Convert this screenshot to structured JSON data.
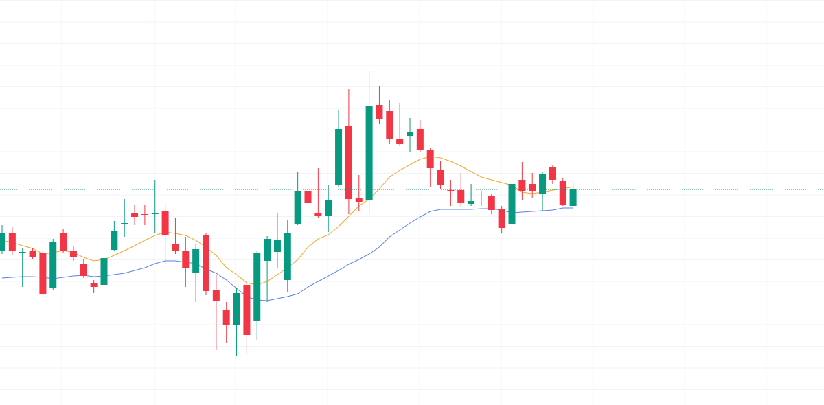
{
  "chart_data": {
    "type": "candlestick",
    "ylim": [
      0,
      590
    ],
    "up_color": "#089981",
    "down_color": "#f23645",
    "open": [
      225,
      250,
      221,
      224,
      222,
      170,
      250,
      225,
      205,
      178,
      175,
      226,
      263,
      280,
      278,
      278,
      282,
      235,
      225,
      192,
      248,
      168,
      138,
      116,
      175,
      122,
      210,
      223,
      182,
      264,
      312,
      279,
      276,
      320,
      407,
      302,
      298,
      437,
      428,
      388,
      392,
      402,
      372,
      343,
      313,
      313,
      293,
      304,
      305,
      285,
      264,
      328,
      322,
      308,
      347,
      327,
      290
    ],
    "high": [
      262,
      260,
      228,
      228,
      225,
      242,
      257,
      232,
      212,
      182,
      215,
      268,
      300,
      292,
      292,
      328,
      295,
      272,
      245,
      235,
      250,
      190,
      150,
      170,
      178,
      225,
      246,
      280,
      270,
      340,
      358,
      345,
      320,
      430,
      460,
      335,
      487,
      465,
      445,
      440,
      418,
      415,
      375,
      355,
      328,
      338,
      322,
      312,
      308,
      290,
      325,
      354,
      338,
      340,
      350,
      330,
      325
    ],
    "low": [
      220,
      218,
      172,
      212,
      160,
      168,
      222,
      210,
      185,
      163,
      174,
      224,
      245,
      262,
      262,
      250,
      205,
      220,
      172,
      150,
      160,
      80,
      90,
      72,
      75,
      95,
      150,
      200,
      165,
      262,
      270,
      272,
      252,
      318,
      278,
      282,
      278,
      410,
      380,
      377,
      368,
      368,
      318,
      314,
      290,
      288,
      290,
      290,
      278,
      250,
      253,
      298,
      302,
      283,
      322,
      290,
      288
    ],
    "close": [
      250,
      225,
      223,
      216,
      162,
      238,
      225,
      215,
      188,
      172,
      214,
      254,
      265,
      274,
      277,
      279,
      248,
      225,
      200,
      227,
      166,
      152,
      116,
      163,
      102,
      222,
      242,
      240,
      250,
      312,
      294,
      275,
      298,
      402,
      300,
      296,
      435,
      417,
      388,
      380,
      398,
      372,
      345,
      320,
      312,
      295,
      297,
      305,
      284,
      258,
      322,
      312,
      312,
      336,
      328,
      292,
      314
    ],
    "moving_averages": [
      {
        "color": "#f5a623",
        "values": [
          240,
          237,
          232,
          228,
          220,
          222,
          225,
          222,
          215,
          210,
          212,
          218,
          225,
          232,
          240,
          247,
          252,
          250,
          247,
          240,
          230,
          218,
          200,
          190,
          178,
          175,
          180,
          190,
          200,
          212,
          230,
          242,
          248,
          260,
          275,
          290,
          300,
          315,
          332,
          342,
          350,
          358,
          362,
          360,
          355,
          348,
          340,
          332,
          328,
          324,
          320,
          310,
          308,
          310,
          313,
          315,
          318
        ]
      },
      {
        "color": "#5b7ff0",
        "values": [
          185,
          186,
          187,
          187,
          186,
          184,
          186,
          188,
          189,
          187,
          188,
          190,
          192,
          196,
          200,
          206,
          210,
          210,
          208,
          206,
          198,
          192,
          182,
          170,
          158,
          153,
          152,
          155,
          158,
          162,
          172,
          180,
          188,
          196,
          205,
          212,
          220,
          230,
          245,
          255,
          265,
          274,
          282,
          285,
          285,
          285,
          285,
          286,
          286,
          284,
          280,
          281,
          282,
          283,
          284,
          287,
          287
        ]
      }
    ],
    "last_price_line": true,
    "grid": true
  }
}
